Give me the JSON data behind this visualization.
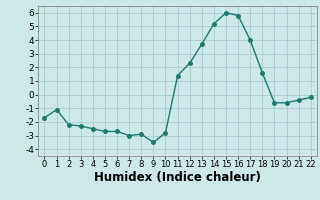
{
  "x": [
    0,
    1,
    2,
    3,
    4,
    5,
    6,
    7,
    8,
    9,
    10,
    11,
    12,
    13,
    14,
    15,
    16,
    17,
    18,
    19,
    20,
    21,
    22
  ],
  "y": [
    -1.7,
    -1.1,
    -2.2,
    -2.3,
    -2.5,
    -2.7,
    -2.7,
    -3.0,
    -2.9,
    -3.5,
    -2.8,
    1.4,
    2.3,
    3.7,
    5.2,
    6.0,
    5.8,
    4.0,
    1.6,
    -0.6,
    -0.6,
    -0.4,
    -0.2
  ],
  "line_color": "#1a7a6e",
  "marker": "o",
  "marker_size": 2.5,
  "bg_color": "#cce8e8",
  "grid_color": "#aacccc",
  "xlabel": "Humidex (Indice chaleur)",
  "ylim": [
    -4.5,
    6.5
  ],
  "xlim": [
    -0.5,
    22.5
  ],
  "yticks": [
    -4,
    -3,
    -2,
    -1,
    0,
    1,
    2,
    3,
    4,
    5,
    6
  ],
  "xticks": [
    0,
    1,
    2,
    3,
    4,
    5,
    6,
    7,
    8,
    9,
    10,
    11,
    12,
    13,
    14,
    15,
    16,
    17,
    18,
    19,
    20,
    21,
    22
  ],
  "tick_fontsize": 6.5,
  "xlabel_fontsize": 8.5,
  "xlabel_fontweight": "bold"
}
